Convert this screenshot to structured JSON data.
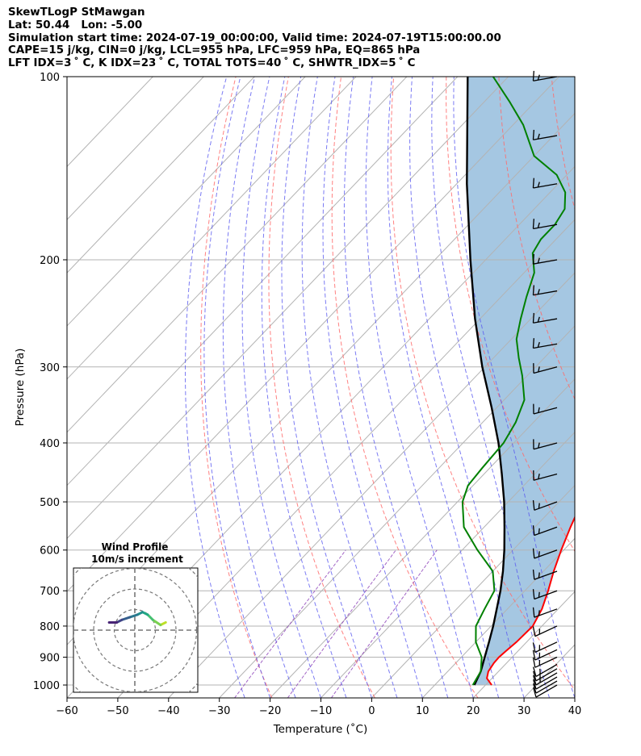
{
  "header": {
    "line1": "SkewTLogP StMawgan",
    "line2": "Lat: 50.44   Lon: -5.00",
    "line3": "Simulation start time: 2024-07-19_00:00:00, Valid time: 2024-07-19T15:00:00.00",
    "line4": "CAPE=15 j/kg, CIN=0 j/kg, LCL=955 hPa, LFC=959 hPa, EQ=865 hPa",
    "line5": "LFT IDX=3 ˚ C, K IDX=23 ˚ C, TOTAL TOTS=40 ˚ C, SHWTR_IDX=5 ˚ C"
  },
  "chart_data": {
    "type": "line",
    "xlabel": "Temperature (˚C)",
    "ylabel": "Pressure (hPa)",
    "xlim": [
      -60,
      40
    ],
    "ylim": [
      1050,
      100
    ],
    "yscale": "log",
    "x_ticks": [
      "−60",
      "−50",
      "−40",
      "−30",
      "−20",
      "−10",
      "0",
      "10",
      "20",
      "30",
      "40"
    ],
    "y_ticks": [
      "100",
      "200",
      "300",
      "400",
      "500",
      "600",
      "700",
      "800",
      "900",
      "1000"
    ],
    "grid": true,
    "colors": {
      "temperature": "#ff0000",
      "dewpoint": "#008000",
      "parcel": "#000000",
      "cape": "#a0c4e0",
      "dry_adiabats": "#ff6b6b",
      "moist_adiabats": "#5a5af0",
      "mixing_ratio": "#8b3fb8"
    },
    "series": [
      {
        "key": "temperature",
        "values": [
          [
            1000,
            21.2
          ],
          [
            975,
            19.0
          ],
          [
            950,
            18.0
          ],
          [
            920,
            17.5
          ],
          [
            900,
            17.4
          ],
          [
            880,
            17.6
          ],
          [
            850,
            18.0
          ],
          [
            800,
            18.2
          ],
          [
            750,
            16.8
          ],
          [
            700,
            14.6
          ],
          [
            650,
            12.0
          ],
          [
            600,
            9.5
          ],
          [
            550,
            7.0
          ],
          [
            500,
            4.5
          ],
          [
            450,
            1.0
          ],
          [
            400,
            -3.5
          ],
          [
            370,
            -7.5
          ],
          [
            350,
            -10.5
          ],
          [
            320,
            -15.2
          ],
          [
            300,
            -18.5
          ],
          [
            280,
            -22.0
          ],
          [
            260,
            -25.5
          ],
          [
            240,
            -29.0
          ],
          [
            220,
            -33.0
          ],
          [
            200,
            -37.0
          ],
          [
            190,
            -40.0
          ],
          [
            180,
            -42.0
          ],
          [
            170,
            -41.0
          ],
          [
            160,
            -40.5
          ],
          [
            150,
            -40.0
          ],
          [
            140,
            -39.5
          ],
          [
            130,
            -40.0
          ],
          [
            120,
            -41.0
          ],
          [
            110,
            -42.0
          ],
          [
            100,
            -43.5
          ]
        ]
      },
      {
        "key": "dewpoint",
        "values": [
          [
            1000,
            17.5
          ],
          [
            975,
            17.0
          ],
          [
            950,
            16.5
          ],
          [
            900,
            14.0
          ],
          [
            850,
            10.0
          ],
          [
            800,
            7.0
          ],
          [
            750,
            5.5
          ],
          [
            700,
            4.0
          ],
          [
            650,
            0.0
          ],
          [
            600,
            -7.0
          ],
          [
            550,
            -14.0
          ],
          [
            500,
            -19.0
          ],
          [
            470,
            -21.0
          ],
          [
            440,
            -21.5
          ],
          [
            400,
            -22.0
          ],
          [
            370,
            -23.5
          ],
          [
            340,
            -26.0
          ],
          [
            310,
            -31.0
          ],
          [
            290,
            -35.0
          ],
          [
            270,
            -39.0
          ],
          [
            250,
            -42.0
          ],
          [
            230,
            -45.0
          ],
          [
            210,
            -48.0
          ],
          [
            195,
            -52.0
          ],
          [
            185,
            -53.0
          ],
          [
            175,
            -53.0
          ],
          [
            165,
            -54.0
          ],
          [
            155,
            -57.0
          ],
          [
            145,
            -62.0
          ],
          [
            135,
            -70.0
          ],
          [
            120,
            -78.0
          ],
          [
            110,
            -85.0
          ],
          [
            100,
            -93.0
          ]
        ]
      },
      {
        "key": "parcel",
        "values": [
          [
            1000,
            17.8
          ],
          [
            950,
            16.5
          ],
          [
            900,
            14.6
          ],
          [
            850,
            12.6
          ],
          [
            800,
            10.4
          ],
          [
            750,
            7.9
          ],
          [
            700,
            5.2
          ],
          [
            650,
            2.0
          ],
          [
            600,
            -1.7
          ],
          [
            550,
            -6.0
          ],
          [
            500,
            -10.8
          ],
          [
            450,
            -16.5
          ],
          [
            400,
            -23.0
          ],
          [
            350,
            -31.0
          ],
          [
            300,
            -40.5
          ],
          [
            250,
            -51.0
          ],
          [
            200,
            -63.0
          ],
          [
            150,
            -78.0
          ],
          [
            100,
            -98.0
          ]
        ]
      }
    ],
    "hodograph": {
      "title": "Wind Profile",
      "subtitle": "10m/s increment",
      "u": [
        6.0,
        5.0,
        3.5,
        2.5,
        1.5,
        0.5,
        -1.0,
        -2.5,
        -3.5,
        -5.0
      ],
      "v": [
        1.5,
        1.0,
        2.0,
        3.0,
        3.5,
        3.0,
        2.5,
        2.0,
        1.5,
        1.5
      ]
    },
    "wind_barbs": {
      "pressures": [
        1000,
        985,
        970,
        955,
        940,
        925,
        900,
        875,
        850,
        800,
        750,
        700,
        650,
        600,
        550,
        500,
        450,
        400,
        350,
        300,
        275,
        250,
        225,
        200,
        175,
        150,
        125,
        100
      ],
      "speed_kt": [
        10,
        10,
        10,
        15,
        15,
        15,
        15,
        15,
        15,
        15,
        15,
        15,
        15,
        15,
        15,
        15,
        15,
        15,
        15,
        15,
        15,
        15,
        15,
        15,
        15,
        15,
        15,
        15
      ],
      "direction": [
        240,
        240,
        240,
        240,
        240,
        240,
        245,
        245,
        245,
        245,
        250,
        250,
        250,
        250,
        250,
        250,
        255,
        255,
        255,
        255,
        260,
        260,
        260,
        260,
        260,
        260,
        260,
        260
      ]
    }
  }
}
